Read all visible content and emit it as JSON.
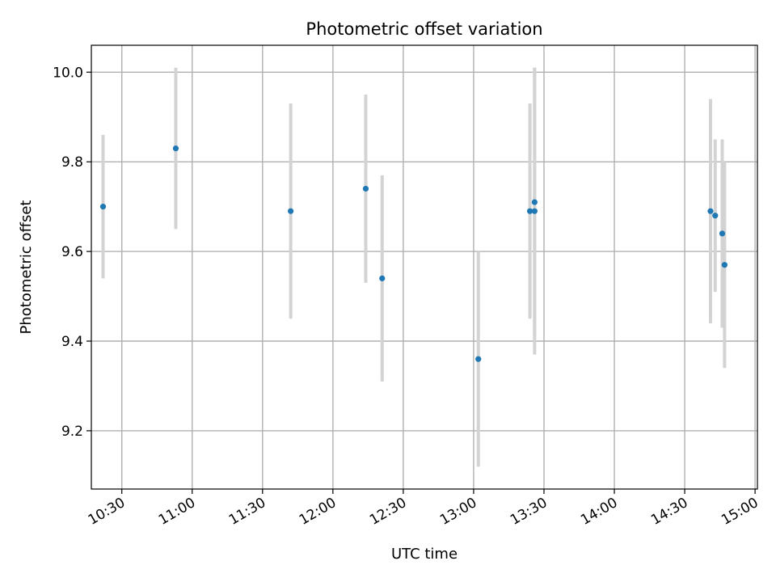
{
  "chart_data": {
    "type": "scatter",
    "title": "Photometric offset variation",
    "xlabel": "UTC time",
    "ylabel": "Photometric offset",
    "x_tick_labels": [
      "10:30",
      "11:00",
      "11:30",
      "12:00",
      "12:30",
      "13:00",
      "13:30",
      "14:00",
      "14:30",
      "15:00"
    ],
    "y_tick_labels": [
      "9.2",
      "9.4",
      "9.6",
      "9.8",
      "10.0"
    ],
    "y_ticks": [
      9.2,
      9.4,
      9.6,
      9.8,
      10.0
    ],
    "xlim": [
      "10:17",
      "15:01"
    ],
    "ylim": [
      9.07,
      10.06
    ],
    "grid": true,
    "series": [
      {
        "x": [
          "10:22",
          "10:53",
          "11:42",
          "12:14",
          "12:21",
          "13:02",
          "13:24",
          "13:26",
          "13:26",
          "14:41",
          "14:43",
          "14:46",
          "14:47"
        ],
        "y": [
          9.7,
          9.83,
          9.69,
          9.74,
          9.54,
          9.36,
          9.69,
          9.69,
          9.71,
          9.69,
          9.68,
          9.64,
          9.57
        ],
        "error": [
          0.16,
          0.18,
          0.24,
          0.21,
          0.23,
          0.24,
          0.24,
          0.32,
          0.3,
          0.25,
          0.17,
          0.21,
          0.23
        ],
        "marker_color": "#1f77b4",
        "errorbar_color": "#d3d3d3"
      }
    ]
  }
}
